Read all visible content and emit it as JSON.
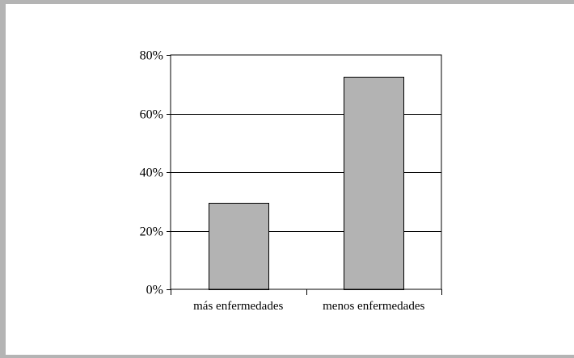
{
  "colors": {
    "frame": "#b4b4b4",
    "bar_fill": "#b3b3b3",
    "line": "#000000",
    "background": "#ffffff"
  },
  "chart_data": {
    "type": "bar",
    "categories": [
      "más enfermedades",
      "menos enfermedades"
    ],
    "values": [
      29.5,
      72.5
    ],
    "value_unit": "%",
    "ylim": [
      0,
      80
    ],
    "yticks": [
      0,
      20,
      40,
      60,
      80
    ],
    "ytick_labels": [
      "0%",
      "20%",
      "40%",
      "60%",
      "80%"
    ],
    "grid": true,
    "legend": "none",
    "title": "",
    "xlabel": "",
    "ylabel": ""
  }
}
